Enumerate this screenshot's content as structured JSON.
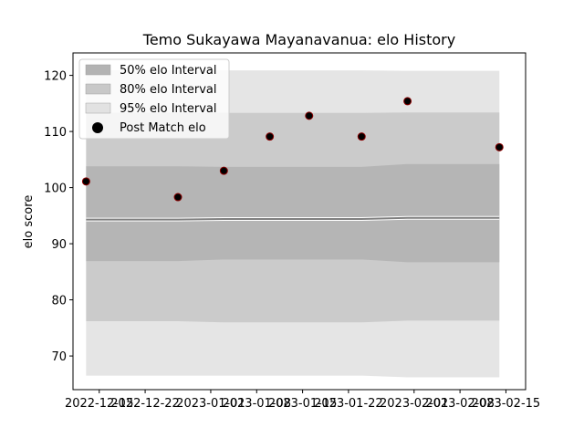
{
  "chart_data": {
    "type": "scatter",
    "title": "Temo Sukayawa Mayanavanua: elo History",
    "xlabel": "",
    "ylabel": "elo score",
    "x_ticks": [
      "2022-12-15",
      "2022-12-22",
      "2023-01-01",
      "2023-01-08",
      "2023-01-15",
      "2023-01-22",
      "2023-02-01",
      "2023-02-08",
      "2023-02-15"
    ],
    "ylim": [
      64,
      124
    ],
    "y_ticks": [
      70,
      80,
      90,
      100,
      110,
      120
    ],
    "xlim": [
      "2022-12-11",
      "2023-02-18"
    ],
    "grid": false,
    "legend_position": "top-left",
    "legend": [
      {
        "label": "50% elo Interval",
        "color": "#b3b3b3"
      },
      {
        "label": "80% elo Interval",
        "color": "#c8c8c8"
      },
      {
        "label": "95% elo Interval",
        "color": "#e2e2e2"
      },
      {
        "label": "Post Match elo",
        "color": "#000000"
      }
    ],
    "x": [
      "2022-12-13",
      "2022-12-27",
      "2023-01-03",
      "2023-01-10",
      "2023-01-16",
      "2023-01-24",
      "2023-01-31",
      "2023-02-14"
    ],
    "post_match_elo": [
      101.1,
      98.3,
      103.0,
      109.1,
      112.8,
      109.1,
      115.4,
      107.2
    ],
    "mean": [
      94.3,
      94.3,
      94.4,
      94.4,
      94.4,
      94.4,
      94.6,
      94.6
    ],
    "interval_50": {
      "lower": [
        86.9,
        86.9,
        87.2,
        87.2,
        87.2,
        87.2,
        86.7,
        86.7
      ],
      "upper": [
        103.8,
        103.8,
        103.7,
        103.7,
        103.7,
        103.7,
        104.2,
        104.2
      ]
    },
    "interval_80": {
      "lower": [
        76.2,
        76.2,
        76.0,
        76.0,
        76.0,
        76.0,
        76.3,
        76.3
      ],
      "upper": [
        113.3,
        113.3,
        113.3,
        113.3,
        113.3,
        113.3,
        113.4,
        113.4
      ]
    },
    "interval_95": {
      "lower": [
        66.5,
        66.5,
        66.5,
        66.5,
        66.5,
        66.5,
        66.2,
        66.2
      ],
      "upper": [
        120.9,
        120.9,
        120.9,
        120.9,
        120.9,
        120.9,
        120.8,
        120.8
      ]
    },
    "colors": {
      "mean_line": "#808080",
      "marker_edge": "#8b0000",
      "marker_face": "#000000",
      "axes": "#000000",
      "background": "#ffffff"
    }
  }
}
